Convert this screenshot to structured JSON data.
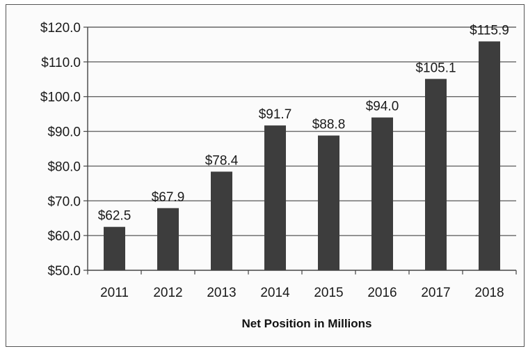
{
  "chart_data": {
    "type": "bar",
    "title": "",
    "xlabel": "Net Position in Millions",
    "ylabel": "",
    "categories": [
      "2011",
      "2012",
      "2013",
      "2014",
      "2015",
      "2016",
      "2017",
      "2018"
    ],
    "values": [
      62.5,
      67.9,
      78.4,
      91.7,
      88.8,
      94.0,
      105.1,
      115.9
    ],
    "value_labels": [
      "$62.5",
      "$67.9",
      "$78.4",
      "$91.7",
      "$88.8",
      "$94.0",
      "$105.1",
      "$115.9"
    ],
    "ylim": [
      50,
      120
    ],
    "yticks": [
      50,
      60,
      70,
      80,
      90,
      100,
      110,
      120
    ],
    "ytick_labels": [
      "$50.0",
      "$60.0",
      "$70.0",
      "$80.0",
      "$90.0",
      "$100.0",
      "$110.0",
      "$120.0"
    ],
    "grid": true,
    "bar_color": "#3d3d3d",
    "legend": "none"
  }
}
